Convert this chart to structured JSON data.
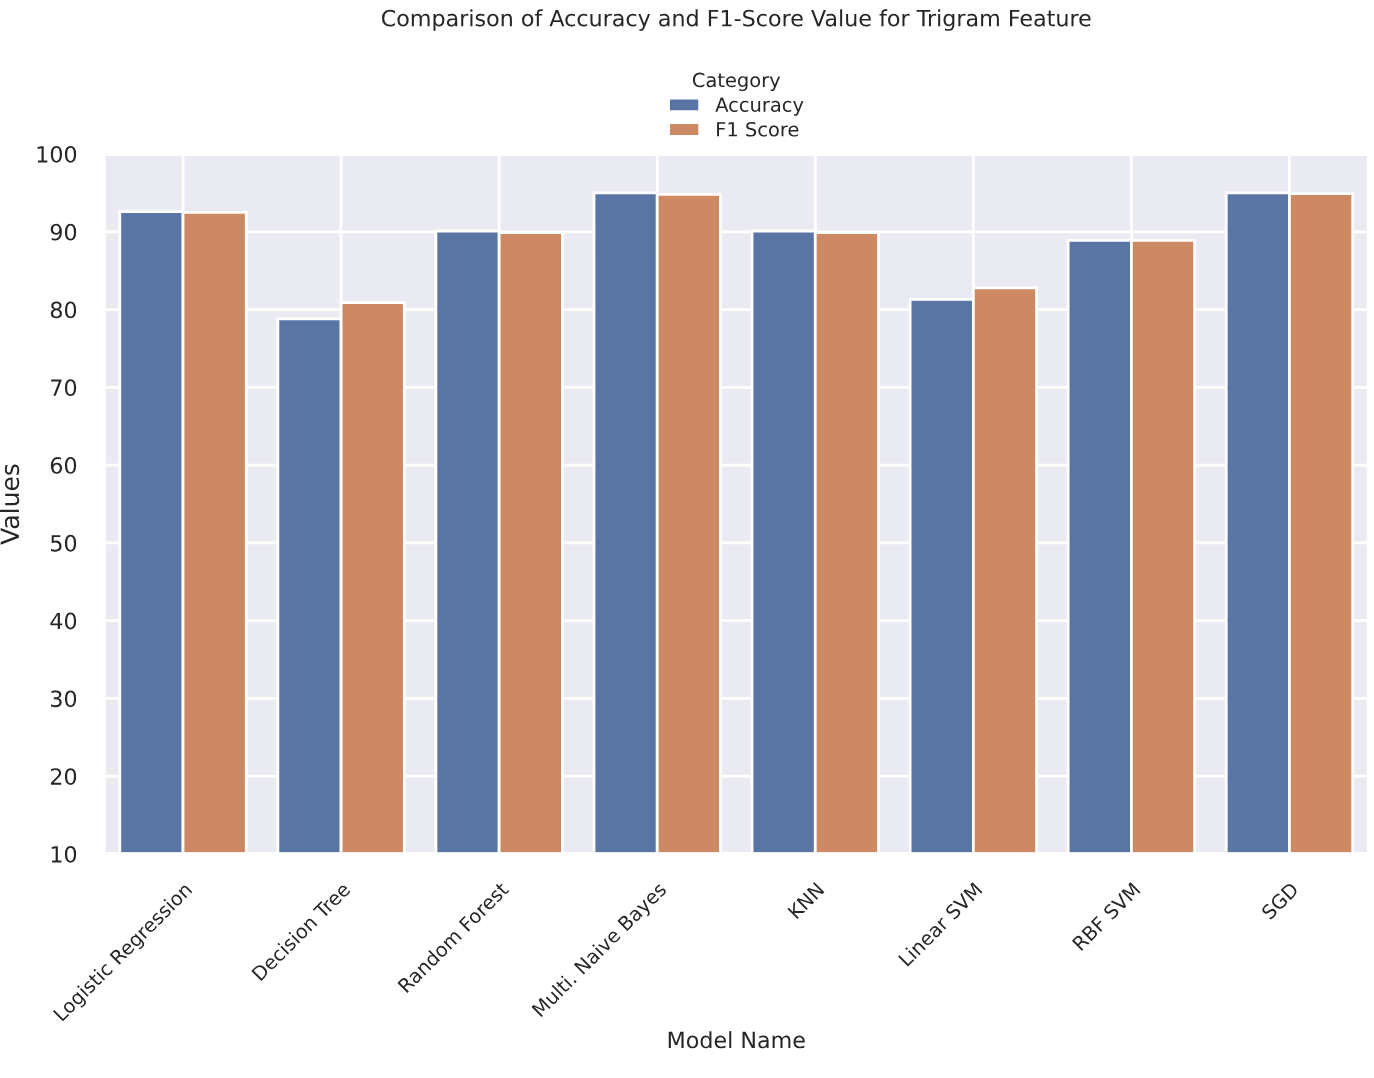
{
  "chart_data": {
    "type": "bar",
    "title": "Comparison of Accuracy and F1-Score Value for Trigram Feature",
    "xlabel": "Model Name",
    "ylabel": "Values",
    "legend_title": "Category",
    "legend": "top",
    "grid": true,
    "categories": [
      "Logistic Regression",
      "Decision Tree",
      "Random Forest",
      "Multi. Naive Bayes",
      "KNN",
      "Linear SVM",
      "RBF SVM",
      "SGD"
    ],
    "series": [
      {
        "name": "Accuracy",
        "color": "#5875a4",
        "values": [
          92.6,
          78.8,
          90.1,
          95.0,
          90.1,
          81.3,
          88.9,
          95.0
        ]
      },
      {
        "name": "F1 Score",
        "color": "#cc8963",
        "values": [
          92.5,
          80.9,
          89.9,
          94.8,
          89.9,
          82.8,
          88.9,
          94.9
        ]
      }
    ],
    "ylim": [
      10,
      100
    ],
    "yticks": [
      10,
      20,
      30,
      40,
      50,
      60,
      70,
      80,
      90,
      100
    ]
  }
}
